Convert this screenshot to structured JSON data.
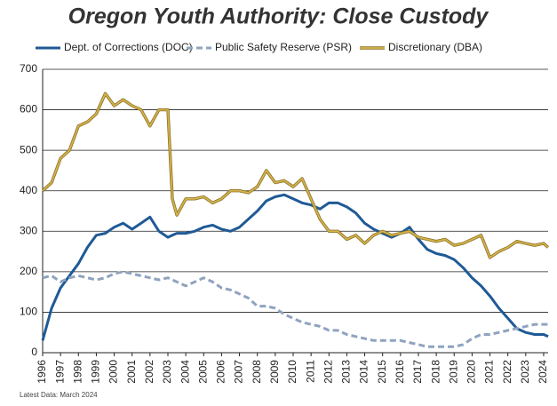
{
  "chart_data": {
    "type": "line",
    "title": "Oregon Youth Authority: Close Custody",
    "note": "Latest Data: March 2024",
    "x": [
      1996,
      1996.5,
      1997,
      1997.5,
      1998,
      1998.5,
      1999,
      1999.5,
      2000,
      2000.5,
      2001,
      2001.5,
      2002,
      2002.5,
      2003,
      2003.25,
      2003.5,
      2004,
      2004.5,
      2005,
      2005.5,
      2006,
      2006.5,
      2007,
      2007.5,
      2008,
      2008.5,
      2009,
      2009.5,
      2010,
      2010.5,
      2011,
      2011.5,
      2012,
      2012.5,
      2013,
      2013.5,
      2014,
      2014.5,
      2015,
      2015.5,
      2016,
      2016.5,
      2017,
      2017.5,
      2018,
      2018.5,
      2019,
      2019.5,
      2020,
      2020.5,
      2021,
      2021.5,
      2022,
      2022.5,
      2023,
      2023.5,
      2024,
      2024.25
    ],
    "series": [
      {
        "name": "Dept. of Corrections (DOC)",
        "color": "#1f5a96",
        "dash": "solid",
        "values": [
          30,
          110,
          160,
          190,
          220,
          260,
          290,
          295,
          310,
          320,
          305,
          320,
          335,
          300,
          285,
          290,
          295,
          295,
          300,
          310,
          315,
          305,
          300,
          310,
          330,
          350,
          375,
          385,
          390,
          380,
          370,
          365,
          355,
          370,
          370,
          360,
          345,
          320,
          305,
          295,
          285,
          295,
          310,
          280,
          255,
          245,
          240,
          230,
          210,
          185,
          165,
          140,
          110,
          85,
          60,
          50,
          45,
          45,
          40
        ]
      },
      {
        "name": "Public Safety Reserve (PSR)",
        "color": "#8fa3bf",
        "dash": "dashed",
        "values": [
          185,
          190,
          175,
          185,
          190,
          185,
          180,
          185,
          195,
          200,
          195,
          190,
          185,
          180,
          185,
          180,
          175,
          165,
          175,
          185,
          175,
          160,
          155,
          145,
          135,
          115,
          115,
          110,
          95,
          85,
          75,
          70,
          65,
          55,
          55,
          45,
          40,
          35,
          30,
          30,
          30,
          30,
          25,
          20,
          15,
          15,
          15,
          15,
          20,
          35,
          45,
          45,
          50,
          55,
          60,
          65,
          70,
          70,
          70
        ]
      },
      {
        "name": "Discretionary (DBA)",
        "color": "#d4b24a",
        "dash": "double",
        "values": [
          400,
          420,
          480,
          500,
          560,
          570,
          590,
          640,
          610,
          625,
          610,
          600,
          560,
          600,
          600,
          380,
          340,
          380,
          380,
          385,
          370,
          380,
          400,
          400,
          395,
          410,
          450,
          420,
          425,
          410,
          430,
          380,
          330,
          300,
          300,
          280,
          290,
          270,
          290,
          300,
          290,
          295,
          300,
          285,
          280,
          275,
          280,
          265,
          270,
          280,
          290,
          235,
          250,
          260,
          275,
          270,
          265,
          270,
          260
        ]
      }
    ],
    "xlim": [
      1996,
      2024.25
    ],
    "xticks": [
      1996,
      1997,
      1998,
      1999,
      2000,
      2001,
      2002,
      2003,
      2004,
      2005,
      2006,
      2007,
      2008,
      2009,
      2010,
      2011,
      2012,
      2013,
      2014,
      2015,
      2016,
      2017,
      2018,
      2019,
      2020,
      2021,
      2022,
      2023,
      2024
    ],
    "ylim": [
      0,
      700
    ],
    "yticks": [
      0,
      100,
      200,
      300,
      400,
      500,
      600,
      700
    ],
    "grid": true
  }
}
